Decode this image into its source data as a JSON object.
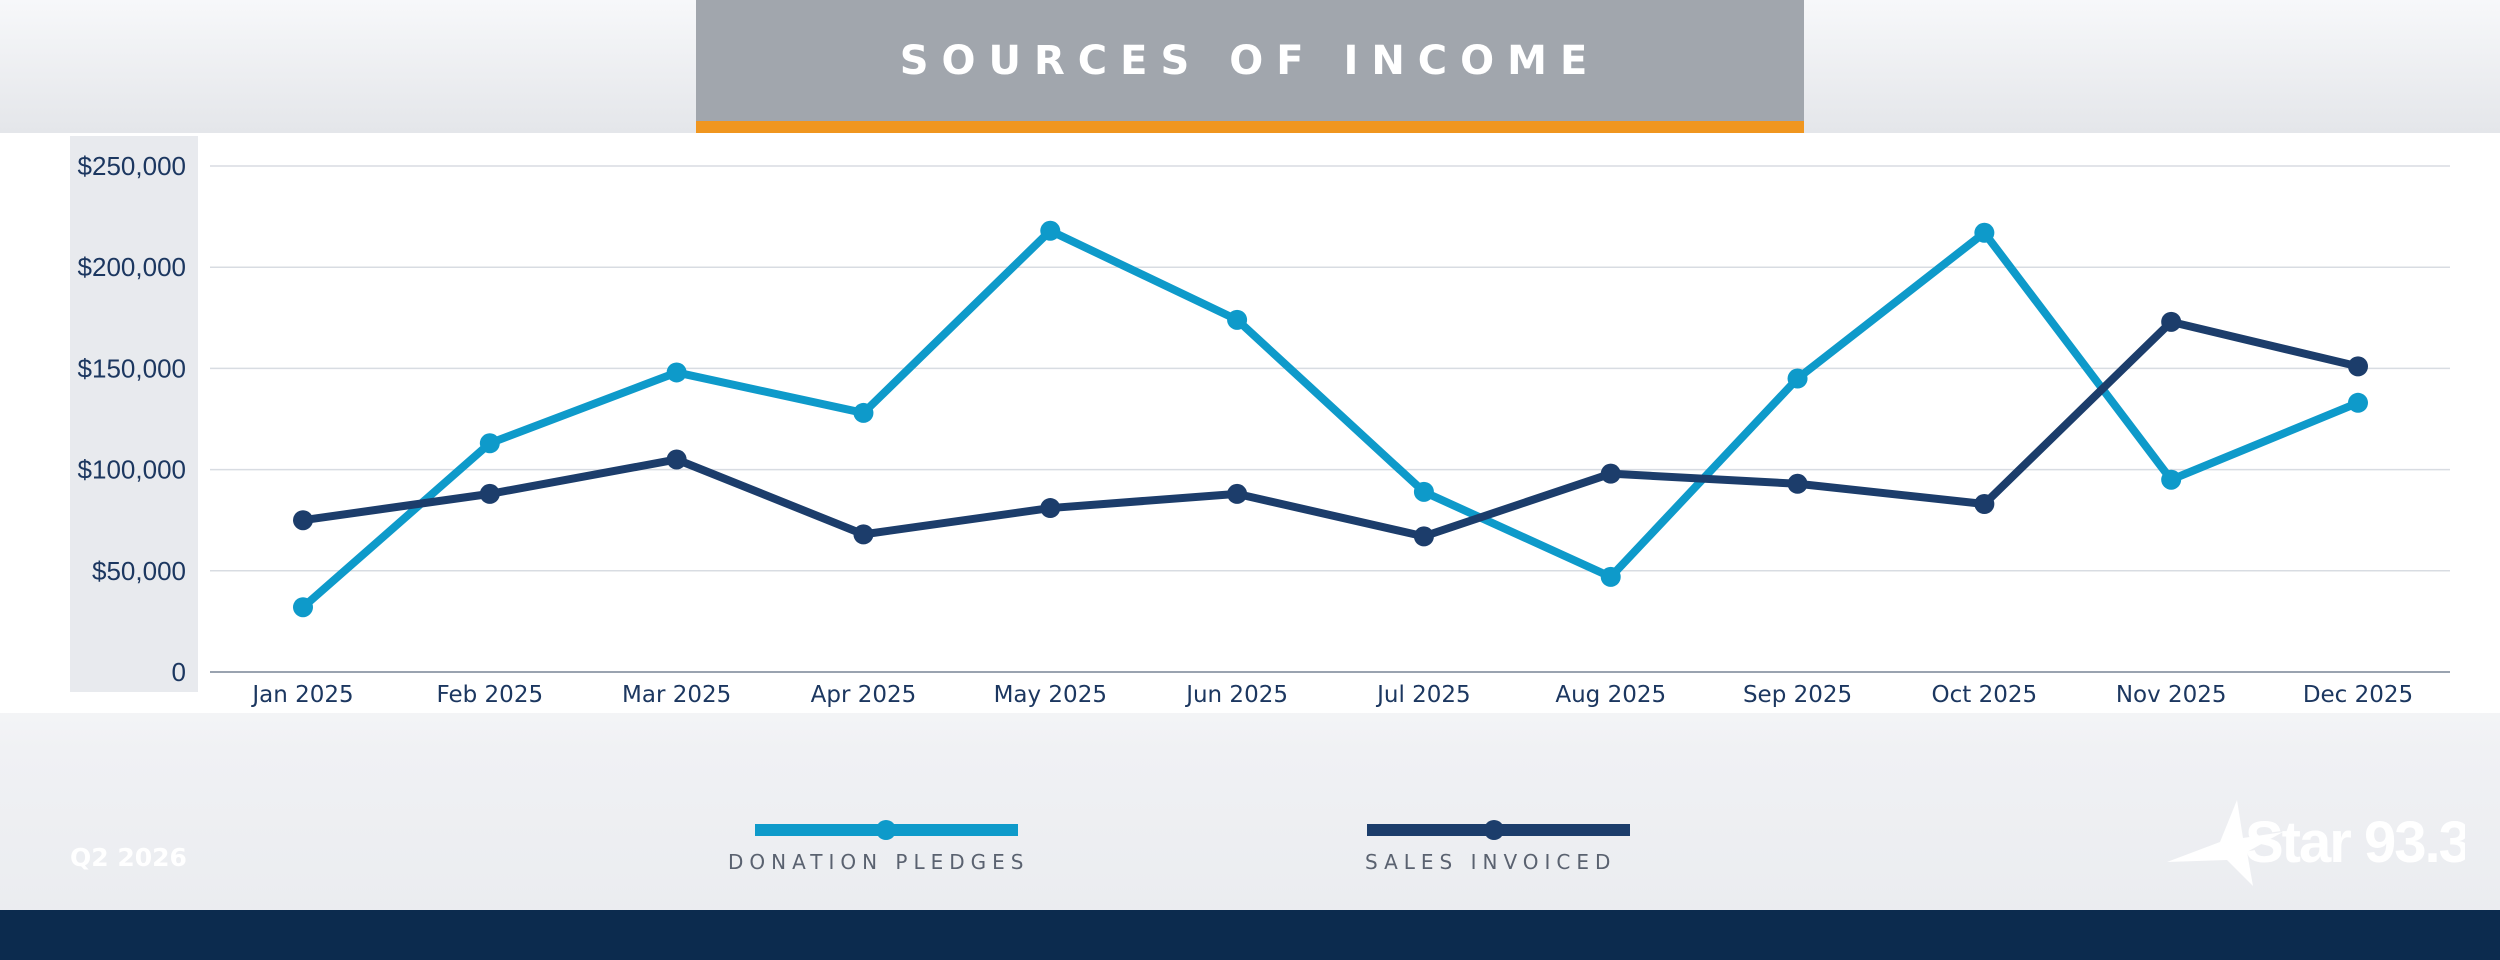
{
  "title": "SOURCES OF INCOME",
  "period": "Q2 2026",
  "logo_text": "Star 93.3",
  "colors": {
    "donation": "#0e9aca",
    "sales": "#1c3d6b",
    "accent": "#f0961f",
    "footer": "#0c2b4e"
  },
  "chart_data": {
    "type": "line",
    "categories": [
      "Jan 2025",
      "Feb 2025",
      "Mar 2025",
      "Apr 2025",
      "May 2025",
      "Jun 2025",
      "Jul 2025",
      "Aug 2025",
      "Sep 2025",
      "Oct 2025",
      "Nov 2025",
      "Dec 2025"
    ],
    "series": [
      {
        "name": "DONATION PLEDGES",
        "color": "#0e9aca",
        "values": [
          32000,
          113000,
          148000,
          128000,
          218000,
          174000,
          89000,
          47000,
          145000,
          217000,
          95000,
          133000
        ]
      },
      {
        "name": "SALES INVOICED",
        "color": "#1c3d6b",
        "values": [
          75000,
          88000,
          105000,
          68000,
          81000,
          88000,
          67000,
          98000,
          93000,
          83000,
          173000,
          151000
        ]
      }
    ],
    "ylim": [
      0,
      250000
    ],
    "yticks": [
      0,
      50000,
      100000,
      150000,
      200000,
      250000
    ],
    "ytick_labels": [
      "0",
      "$50,000",
      "$100,000",
      "$150,000",
      "$200,000",
      "$250,000"
    ],
    "grid": true,
    "legend_position": "bottom-center"
  }
}
